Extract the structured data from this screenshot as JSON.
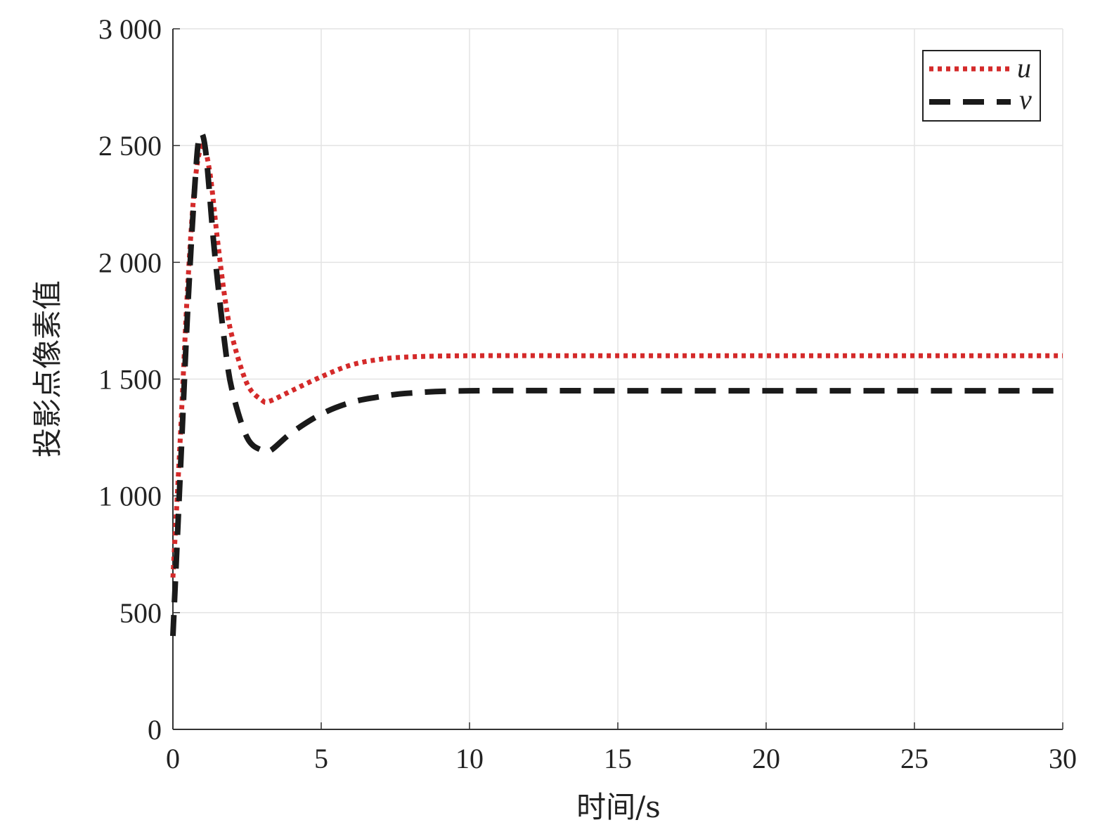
{
  "chart_data": {
    "type": "line",
    "title": "",
    "xlabel": "时间/s",
    "ylabel": "投影点像素值",
    "xlim": [
      0,
      30
    ],
    "ylim": [
      0,
      3000
    ],
    "xticks": [
      0,
      5,
      10,
      15,
      20,
      25,
      30
    ],
    "xtick_labels": [
      "0",
      "5",
      "10",
      "15",
      "20",
      "25",
      "30"
    ],
    "yticks": [
      0,
      500,
      1000,
      1500,
      2000,
      2500,
      3000
    ],
    "ytick_labels": [
      "0",
      "500",
      "1 000",
      "1 500",
      "2 000",
      "2 500",
      "3 000"
    ],
    "grid": true,
    "legend": "top-right",
    "series": [
      {
        "name": "u",
        "color": "#d42a2a",
        "style": "dotted",
        "x": [
          0,
          0.25,
          0.5,
          0.75,
          1.0,
          1.25,
          1.5,
          1.75,
          2.0,
          2.5,
          3.0,
          3.25,
          4,
          5,
          6,
          7,
          8,
          10,
          15,
          20,
          25,
          30
        ],
        "y": [
          650,
          1250,
          1900,
          2350,
          2500,
          2380,
          2100,
          1850,
          1680,
          1480,
          1410,
          1405,
          1450,
          1510,
          1560,
          1585,
          1595,
          1600,
          1600,
          1600,
          1600,
          1600
        ]
      },
      {
        "name": "v",
        "color": "#1a1a1a",
        "style": "dashed",
        "x": [
          0,
          0.25,
          0.5,
          0.75,
          0.9,
          1.1,
          1.4,
          1.75,
          2.0,
          2.5,
          3.0,
          3.3,
          4,
          5,
          6,
          7,
          8,
          10,
          15,
          20,
          25,
          30
        ],
        "y": [
          400,
          1100,
          1800,
          2350,
          2540,
          2480,
          2050,
          1650,
          1450,
          1250,
          1195,
          1195,
          1270,
          1350,
          1400,
          1425,
          1440,
          1450,
          1450,
          1450,
          1450,
          1450
        ]
      }
    ]
  }
}
